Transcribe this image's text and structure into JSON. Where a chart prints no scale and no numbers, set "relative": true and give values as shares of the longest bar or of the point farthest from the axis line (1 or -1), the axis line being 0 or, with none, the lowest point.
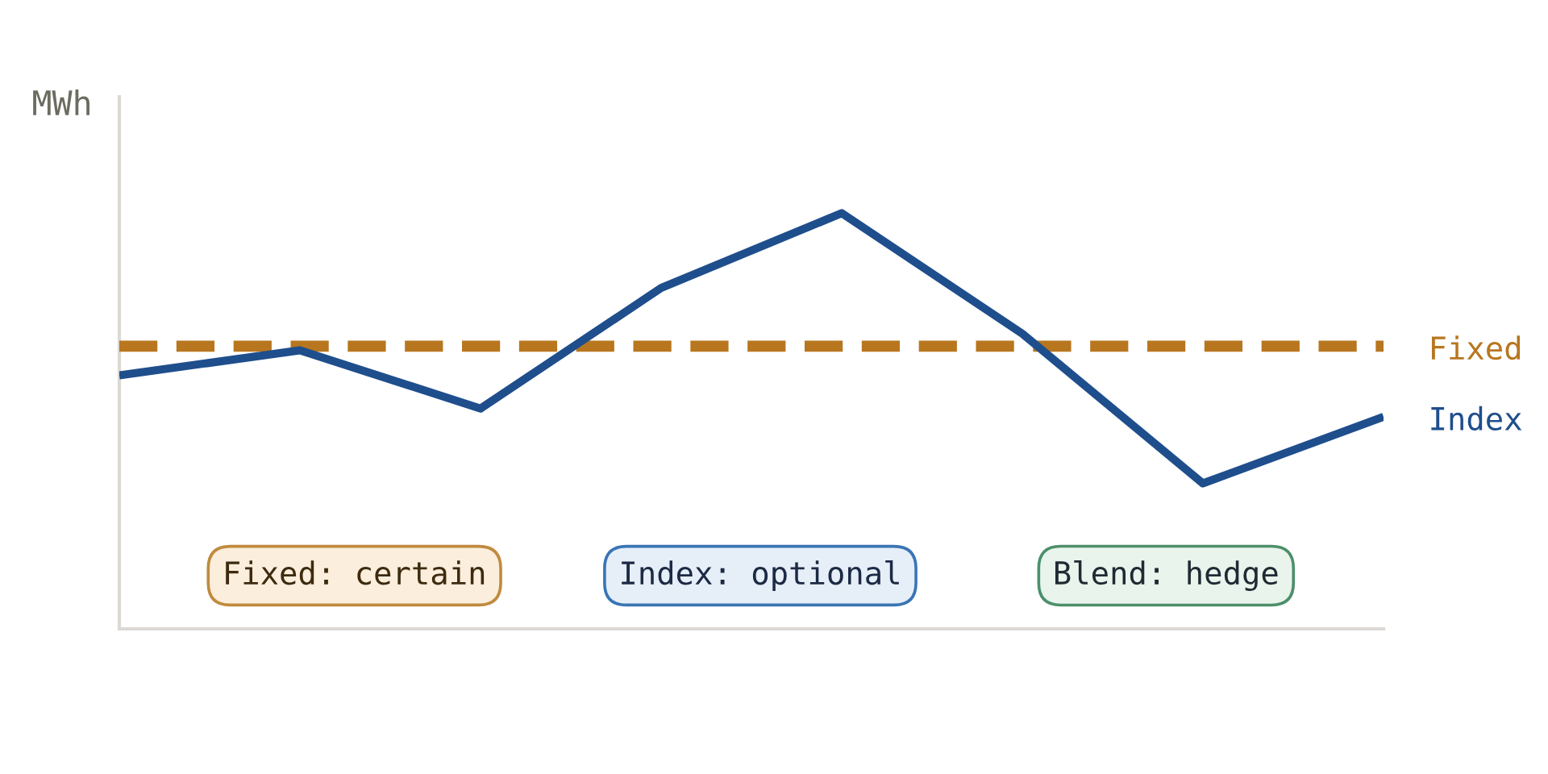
{
  "chart_data": {
    "type": "line",
    "relative": true,
    "ylabel": "MWh",
    "categories": [
      null,
      null,
      null,
      null,
      null,
      null,
      null,
      null
    ],
    "series": [
      {
        "name": "Fixed",
        "color": "#b8761f",
        "line_style": "dashed",
        "values": [
          0.68,
          0.68,
          0.68,
          0.68,
          0.68,
          0.68,
          0.68,
          0.68
        ]
      },
      {
        "name": "Index",
        "color": "#1f4e8c",
        "line_style": "solid",
        "values": [
          0.61,
          0.67,
          0.53,
          0.82,
          1,
          0.71,
          0.35,
          0.51
        ]
      }
    ],
    "annotations": [
      "Fixed: certain",
      "Index: optional",
      "Blend: hedge"
    ]
  }
}
